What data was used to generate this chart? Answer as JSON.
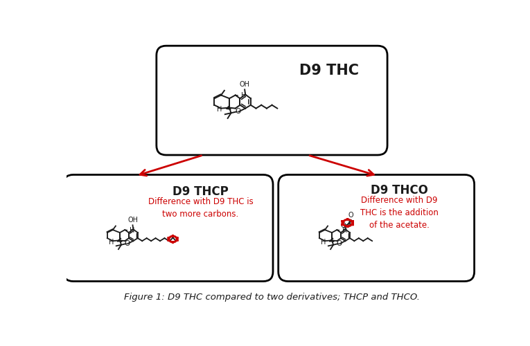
{
  "bg_color": "#ffffff",
  "fig_width": 7.65,
  "fig_height": 5.0,
  "title": "D9 THC",
  "title_thcp": "D9 THCP",
  "title_thco": "D9 THCO",
  "desc_thcp": "Difference with D9 THC is\ntwo more carbons.",
  "desc_thco": "Difference with D9\nTHC is the addition\nof the acetate.",
  "caption": "Figure 1: D9 THC compared to two derivatives; THCP and THCO.",
  "red_color": "#cc0000",
  "black_color": "#1a1a1a"
}
